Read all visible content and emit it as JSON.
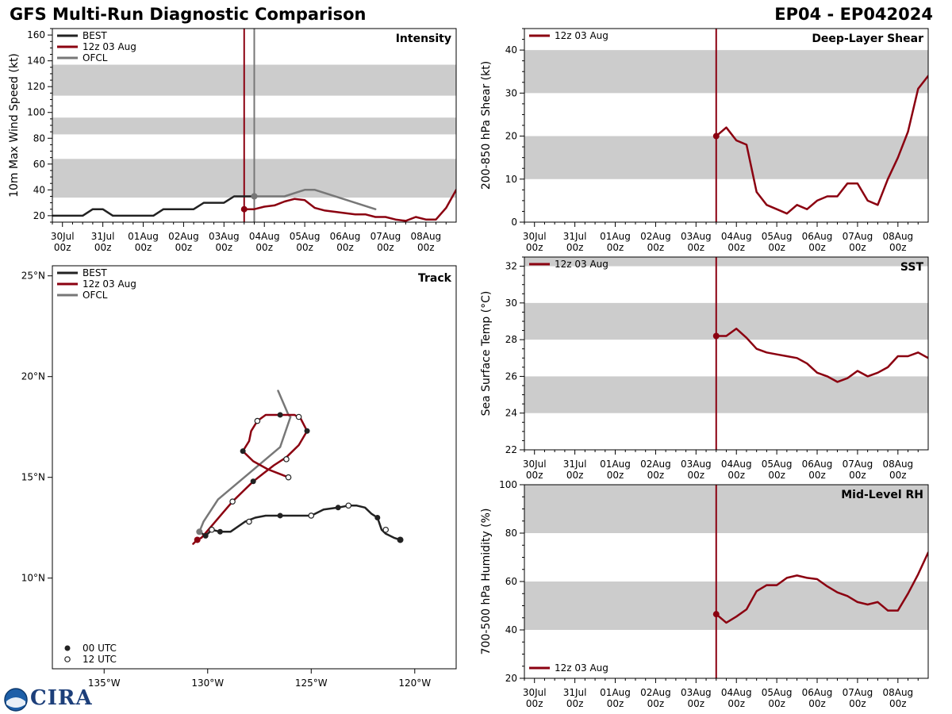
{
  "header": {
    "title": "GFS Multi-Run Diagnostic Comparison",
    "storm_id": "EP04 - EP042024"
  },
  "logo": {
    "text": "CIRA"
  },
  "colors": {
    "best": "#222222",
    "run": "#8b0010",
    "ofcl": "#777777",
    "band": "#cccccc",
    "now_line": "#8b0010"
  },
  "time_axis": {
    "ticks": [
      "30Jul",
      "31Jul",
      "01Aug",
      "02Aug",
      "03Aug",
      "04Aug",
      "05Aug",
      "06Aug",
      "07Aug",
      "08Aug"
    ],
    "sub": "00z"
  },
  "legend": {
    "best": "BEST",
    "run": "12z 03 Aug",
    "ofcl": "OFCL",
    "dot00": "00 UTC",
    "dot12": "12 UTC"
  },
  "chart_data": [
    {
      "id": "intensity",
      "type": "line",
      "title": "Intensity",
      "ylabel": "10m Max Wind Speed (kt)",
      "xlim": [
        -0.25,
        9.75
      ],
      "ylim": [
        15,
        165
      ],
      "yticks": [
        20,
        40,
        60,
        80,
        100,
        120,
        140,
        160
      ],
      "bands": [
        [
          34,
          64
        ],
        [
          83,
          96
        ],
        [
          113,
          137
        ]
      ],
      "now_line": 4.5,
      "ofcl_line": 4.75,
      "series": [
        {
          "name": "BEST",
          "x": [
            -0.25,
            0,
            0.25,
            0.5,
            0.75,
            1,
            1.25,
            1.5,
            1.75,
            2,
            2.25,
            2.5,
            2.75,
            3,
            3.25,
            3.5,
            3.75,
            4,
            4.25,
            4.5,
            4.75
          ],
          "y": [
            20,
            20,
            20,
            20,
            25,
            25,
            20,
            20,
            20,
            20,
            20,
            25,
            25,
            25,
            25,
            30,
            30,
            30,
            35,
            35,
            35
          ]
        },
        {
          "name": "12z 03 Aug",
          "x": [
            4.5,
            4.75,
            5,
            5.25,
            5.5,
            5.75,
            6,
            6.25,
            6.5,
            6.75,
            7,
            7.25,
            7.5,
            7.75,
            8,
            8.25,
            8.5,
            8.75,
            9,
            9.25,
            9.5,
            9.75
          ],
          "y": [
            25,
            25,
            27,
            28,
            31,
            33,
            32,
            26,
            24,
            23,
            22,
            21,
            21,
            19,
            19,
            17,
            16,
            19,
            17,
            17,
            26,
            40
          ]
        },
        {
          "name": "OFCL",
          "x": [
            4.75,
            5,
            5.25,
            5.5,
            6,
            6.25,
            7.75
          ],
          "y": [
            35,
            35,
            35,
            35,
            40,
            40,
            25
          ]
        }
      ]
    },
    {
      "id": "track",
      "type": "line",
      "title": "Track",
      "xlim": [
        -137.5,
        -118.0
      ],
      "ylim": [
        5.5,
        25.5
      ],
      "xticks": [
        -135,
        -130,
        -125,
        -120
      ],
      "xtick_labels": [
        "135°W",
        "130°W",
        "125°W",
        "120°W"
      ],
      "yticks": [
        10,
        15,
        20,
        25
      ],
      "ytick_labels": [
        "10°N",
        "15°N",
        "20°N",
        "25°N"
      ],
      "series": [
        {
          "name": "BEST",
          "lon": [
            -120.7,
            -121.0,
            -121.4,
            -121.6,
            -121.8,
            -122.1,
            -122.4,
            -122.8,
            -123.2,
            -123.7,
            -124.4,
            -125.0,
            -125.5,
            -126.0,
            -126.5,
            -127.2,
            -127.7,
            -128.2,
            -128.9,
            -129.4,
            -129.8,
            -130.1,
            -130.4
          ],
          "lat": [
            11.9,
            12.0,
            12.2,
            12.4,
            13.0,
            13.2,
            13.5,
            13.6,
            13.6,
            13.5,
            13.4,
            13.1,
            13.1,
            13.1,
            13.1,
            13.1,
            13.0,
            12.8,
            12.3,
            12.3,
            12.4,
            12.1,
            12.3
          ],
          "pts00_lon": [
            -120.7,
            -121.8,
            -123.7,
            -126.5,
            -129.4,
            -130.1
          ],
          "pts00_lat": [
            11.9,
            13.0,
            13.5,
            13.1,
            12.3,
            12.1
          ],
          "pts12_lon": [
            -121.4,
            -123.2,
            -125.0,
            -128.0,
            -129.8
          ],
          "pts12_lat": [
            12.4,
            13.6,
            13.1,
            12.8,
            12.4
          ]
        },
        {
          "name": "12z 03 Aug",
          "lon": [
            -130.7,
            -130.5,
            -130.3,
            -129.8,
            -129.3,
            -128.8,
            -128.3,
            -127.8,
            -127.3,
            -126.8,
            -126.2,
            -125.6,
            -125.2,
            -125.5,
            -125.8,
            -126.3,
            -126.8,
            -127.2,
            -127.6,
            -127.9,
            -128.0,
            -128.3,
            -127.8,
            -127.1,
            -126.6,
            -126.1
          ],
          "lat": [
            11.7,
            11.9,
            12.0,
            12.6,
            13.2,
            13.8,
            14.3,
            14.8,
            15.2,
            15.6,
            16.0,
            16.6,
            17.3,
            17.9,
            18.1,
            18.1,
            18.1,
            18.1,
            17.8,
            17.3,
            16.8,
            16.3,
            15.8,
            15.4,
            15.2,
            15.0
          ],
          "pts00_lon": [
            -130.5,
            -127.8,
            -125.2,
            -126.5,
            -128.3
          ],
          "pts00_lat": [
            11.9,
            14.8,
            17.3,
            18.1,
            16.3
          ],
          "pts12_lon": [
            -128.8,
            -126.2,
            -125.6,
            -127.6,
            -126.1
          ],
          "pts12_lat": [
            13.8,
            15.9,
            18.0,
            17.8,
            15.0
          ]
        },
        {
          "name": "OFCL",
          "lon": [
            -130.4,
            -130.2,
            -129.5,
            -128.0,
            -126.5,
            -126.0,
            -126.1,
            -126.6
          ],
          "lat": [
            12.3,
            12.8,
            13.9,
            15.2,
            16.5,
            18.0,
            18.1,
            19.3
          ]
        }
      ]
    },
    {
      "id": "shear",
      "type": "line",
      "title": "Deep-Layer Shear",
      "ylabel": "200-850 hPa Shear (kt)",
      "xlim": [
        -0.25,
        9.75
      ],
      "ylim": [
        0,
        45
      ],
      "yticks": [
        0,
        10,
        20,
        30,
        40
      ],
      "bands": [
        [
          10,
          20
        ],
        [
          30,
          40
        ]
      ],
      "now_line": 4.5,
      "series": [
        {
          "name": "12z 03 Aug",
          "x": [
            4.5,
            4.75,
            5,
            5.25,
            5.5,
            5.75,
            6,
            6.25,
            6.5,
            6.75,
            7,
            7.25,
            7.5,
            7.75,
            8,
            8.25,
            8.5,
            8.75,
            9,
            9.25,
            9.5,
            9.75
          ],
          "y": [
            20,
            22,
            19,
            18,
            7,
            4,
            3,
            2,
            4,
            3,
            5,
            6,
            6,
            9,
            9,
            5,
            4,
            10,
            15,
            21,
            31,
            34
          ]
        }
      ]
    },
    {
      "id": "sst",
      "type": "line",
      "title": "SST",
      "ylabel": "Sea Surface Temp (°C)",
      "xlim": [
        -0.25,
        9.75
      ],
      "ylim": [
        22,
        32.5
      ],
      "yticks": [
        22,
        24,
        26,
        28,
        30,
        32
      ],
      "bands": [
        [
          24,
          26
        ],
        [
          28,
          30
        ],
        [
          32,
          34
        ]
      ],
      "now_line": 4.5,
      "series": [
        {
          "name": "12z 03 Aug",
          "x": [
            4.5,
            4.75,
            5,
            5.25,
            5.5,
            5.75,
            6,
            6.25,
            6.5,
            6.75,
            7,
            7.25,
            7.5,
            7.75,
            8,
            8.25,
            8.5,
            8.75,
            9,
            9.25,
            9.5,
            9.75
          ],
          "y": [
            28.2,
            28.2,
            28.6,
            28.1,
            27.5,
            27.3,
            27.2,
            27.1,
            27.0,
            26.7,
            26.2,
            26.0,
            25.7,
            25.9,
            26.3,
            26.0,
            26.2,
            26.5,
            27.1,
            27.1,
            27.3,
            27.0
          ]
        }
      ]
    },
    {
      "id": "rh",
      "type": "line",
      "title": "Mid-Level RH",
      "ylabel": "700-500 hPa Humidity (%)",
      "xlim": [
        -0.25,
        9.75
      ],
      "ylim": [
        20,
        100
      ],
      "yticks": [
        20,
        40,
        60,
        80,
        100
      ],
      "bands": [
        [
          40,
          60
        ],
        [
          80,
          100
        ]
      ],
      "now_line": 4.5,
      "series": [
        {
          "name": "12z 03 Aug",
          "x": [
            4.5,
            4.75,
            5,
            5.25,
            5.5,
            5.75,
            6,
            6.25,
            6.5,
            6.75,
            7,
            7.25,
            7.5,
            7.75,
            8,
            8.25,
            8.5,
            8.75,
            9,
            9.25,
            9.5,
            9.75
          ],
          "y": [
            46.5,
            43,
            45.5,
            48.5,
            56,
            58.5,
            58.5,
            61.5,
            62.5,
            61.5,
            61,
            58,
            55.5,
            54,
            51.5,
            50.5,
            51.5,
            48,
            48,
            55,
            63,
            72
          ]
        }
      ]
    }
  ]
}
